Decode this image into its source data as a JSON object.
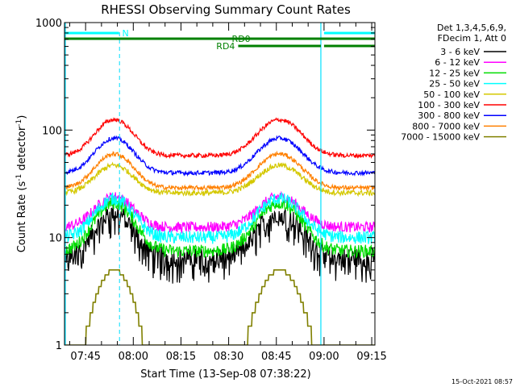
{
  "chart_data": {
    "type": "line",
    "title": "RHESSI Observing Summary Count Rates",
    "xlabel": "Start Time (13-Sep-08 07:38:22)",
    "ylabel": "Count Rate (s⁻¹ detector⁻¹)",
    "ylabel_parts": {
      "a": "Count Rate (s",
      "b": "-1",
      "c": " detector",
      "d": "-1",
      "e": ")"
    },
    "y_scale": "log",
    "ylim": [
      1,
      1000
    ],
    "xlim": [
      "07:38:22",
      "09:16:00"
    ],
    "x_ticks": [
      "07:45",
      "08:00",
      "08:15",
      "08:30",
      "08:45",
      "09:00",
      "09:15"
    ],
    "y_ticks": [
      "1",
      "10",
      "100",
      "1000"
    ],
    "footer_date": "15-Oct-2021 08:57",
    "legend_header": [
      "Det 1,3,4,5,6,9,",
      "FDecim 1, Att 0"
    ],
    "legend_position": "right",
    "series": [
      {
        "name": "3 - 6 keV",
        "color": "#000000",
        "base": 6.5,
        "peak": 17,
        "noise": 0.09
      },
      {
        "name": "6 - 12 keV",
        "color": "#ff00ff",
        "base": 12.5,
        "peak": 24,
        "noise": 0.05
      },
      {
        "name": "12 - 25 keV",
        "color": "#00dd00",
        "base": 7.5,
        "peak": 21,
        "noise": 0.06
      },
      {
        "name": "25 - 50 keV",
        "color": "#00ffff",
        "base": 10,
        "peak": 23,
        "noise": 0.06
      },
      {
        "name": "50 - 100 keV",
        "color": "#d4c800",
        "base": 26,
        "peak": 47,
        "noise": 0.025
      },
      {
        "name": "100 - 300 keV",
        "color": "#ff0000",
        "base": 58,
        "peak": 125,
        "noise": 0.02
      },
      {
        "name": "300 - 800 keV",
        "color": "#0000ff",
        "base": 40,
        "peak": 84,
        "noise": 0.02
      },
      {
        "name": "800 - 7000 keV",
        "color": "#ff8000",
        "base": 29,
        "peak": 60,
        "noise": 0.02
      },
      {
        "name": "7000 - 15000 keV",
        "color": "#808000",
        "base": 1,
        "peak": 5,
        "noise": 0
      }
    ],
    "annotations": {
      "N": {
        "label": "N",
        "color": "#00ffff",
        "segments": [
          [
            "07:38:22",
            "07:55:30"
          ],
          [
            "09:00:00",
            "09:16:00"
          ]
        ]
      },
      "RD0": {
        "label": "RD0",
        "color": "#008000",
        "segments": [
          [
            "07:38:22",
            "09:16:00"
          ]
        ]
      },
      "RD4": {
        "label": "RD4",
        "color": "#008000",
        "segments": [
          [
            "08:33:00",
            "08:59:00"
          ],
          [
            "09:00:00",
            "09:16:00"
          ]
        ]
      }
    },
    "dashed_markers": [
      "07:55:40",
      "09:16:00"
    ],
    "solid_markers": [
      "07:38:22",
      "08:59:00"
    ]
  }
}
